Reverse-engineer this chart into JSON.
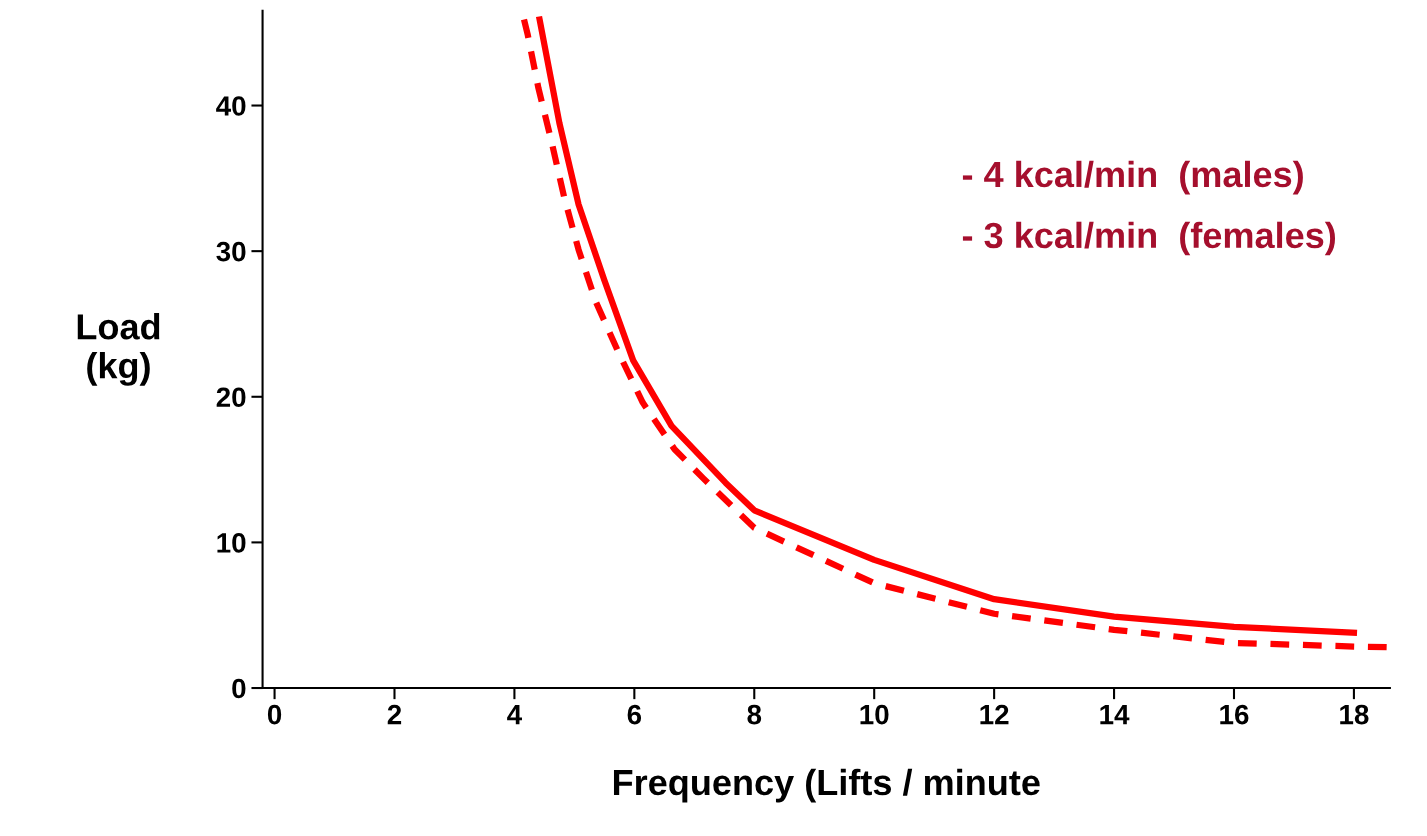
{
  "chart_data": {
    "type": "line",
    "xlabel": "Frequency (Lifts / minute",
    "ylabel": "Load\n(kg)",
    "xlim": [
      -0.2,
      18.6
    ],
    "ylim": [
      0,
      46.5
    ],
    "xticks": [
      0,
      2,
      4,
      6,
      8,
      10,
      12,
      14,
      16,
      18
    ],
    "yticks": [
      0,
      10,
      20,
      30,
      40
    ],
    "grid": false,
    "legend": false,
    "marker": "none",
    "series": [
      {
        "color": "#ff0000",
        "line_style": "solid",
        "x": [
          4.42,
          4.75,
          5.07,
          5.5,
          5.98,
          6.62,
          7.52,
          8,
          10,
          12,
          14,
          16,
          18
        ],
        "values": [
          45.9,
          38.8,
          33.2,
          28.0,
          22.5,
          18.0,
          14.1,
          12.2,
          8.8,
          6.1,
          4.9,
          4.2,
          3.8
        ]
      },
      {
        "color": "#ff0000",
        "line_style": "dashed",
        "x": [
          4.16,
          4.22,
          4.4,
          4.62,
          4.83,
          5.07,
          5.36,
          5.74,
          6.14,
          6.67,
          7.15,
          8,
          10,
          12,
          14,
          16,
          18,
          18.55
        ],
        "values": [
          45.9,
          44.9,
          41.2,
          37.5,
          33.7,
          30.1,
          26.5,
          23.0,
          19.6,
          16.4,
          14.4,
          11.0,
          7.2,
          5.1,
          4.0,
          3.1,
          2.85,
          2.8
        ]
      }
    ],
    "annotations": [
      "- 4 kcal/min  (males)",
      "- 3 kcal/min  (females)"
    ]
  }
}
